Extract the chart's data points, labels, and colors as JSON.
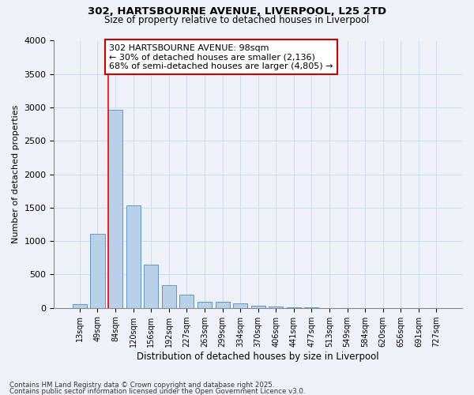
{
  "title_line1": "302, HARTSBOURNE AVENUE, LIVERPOOL, L25 2TD",
  "title_line2": "Size of property relative to detached houses in Liverpool",
  "xlabel": "Distribution of detached houses by size in Liverpool",
  "ylabel": "Number of detached properties",
  "categories": [
    "13sqm",
    "49sqm",
    "84sqm",
    "120sqm",
    "156sqm",
    "192sqm",
    "227sqm",
    "263sqm",
    "299sqm",
    "334sqm",
    "370sqm",
    "406sqm",
    "441sqm",
    "477sqm",
    "513sqm",
    "549sqm",
    "584sqm",
    "620sqm",
    "656sqm",
    "691sqm",
    "727sqm"
  ],
  "values": [
    50,
    1110,
    2970,
    1530,
    650,
    340,
    200,
    95,
    90,
    65,
    30,
    15,
    8,
    3,
    2,
    1,
    1,
    0,
    0,
    0,
    0
  ],
  "bar_color": "#b8d0e8",
  "bar_edge_color": "#6096c8",
  "grid_color": "#d0dcea",
  "background_color": "#eef2f8",
  "red_line_x": 1.6,
  "annotation_text": "302 HARTSBOURNE AVENUE: 98sqm\n← 30% of detached houses are smaller (2,136)\n68% of semi-detached houses are larger (4,805) →",
  "annotation_box_color": "#ffffff",
  "annotation_border_color": "#cc0000",
  "ylim": [
    0,
    4000
  ],
  "yticks": [
    0,
    500,
    1000,
    1500,
    2000,
    2500,
    3000,
    3500,
    4000
  ],
  "footer_line1": "Contains HM Land Registry data © Crown copyright and database right 2025.",
  "footer_line2": "Contains public sector information licensed under the Open Government Licence v3.0."
}
